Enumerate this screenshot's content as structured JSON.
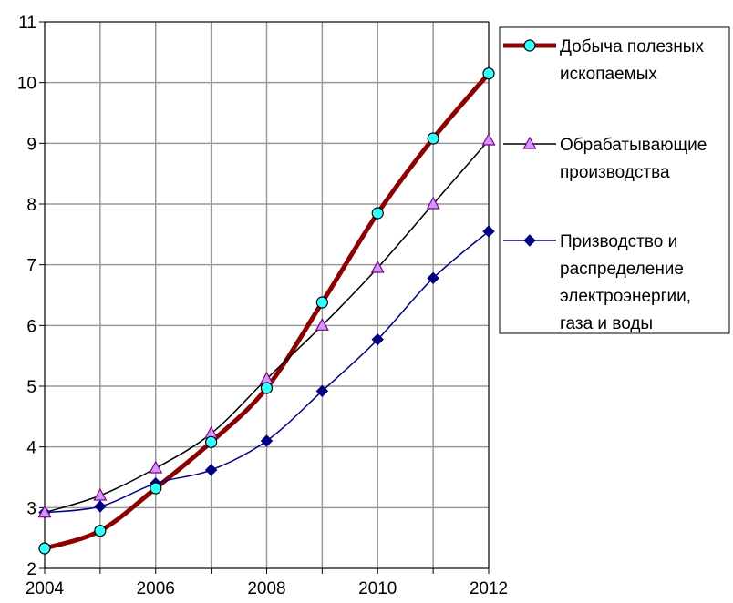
{
  "chart_data": {
    "type": "line",
    "title": "",
    "xlabel": "",
    "ylabel": "",
    "x": [
      2004,
      2005,
      2006,
      2007,
      2008,
      2009,
      2010,
      2011,
      2012
    ],
    "x_tick_labels": [
      "2004",
      "2006",
      "2008",
      "2010",
      "2012"
    ],
    "y_tick_labels": [
      "2",
      "3",
      "4",
      "5",
      "6",
      "7",
      "8",
      "9",
      "10",
      "11"
    ],
    "xlim": [
      2004,
      2012
    ],
    "ylim": [
      2,
      11
    ],
    "grid": true,
    "legend_position": "right",
    "series": [
      {
        "name": "Добыча полезных ископаемых",
        "legend_lines": [
          "Добыча полезных",
          "ископаемых"
        ],
        "values": [
          2.33,
          2.62,
          3.32,
          4.08,
          4.97,
          6.38,
          7.85,
          9.08,
          10.15
        ],
        "color": "#8b0000",
        "marker": "circle",
        "marker_color": "#33ffff"
      },
      {
        "name": "Обрабатывающие производства",
        "legend_lines": [
          "Обрабатывающие",
          "производства"
        ],
        "values": [
          2.92,
          3.2,
          3.65,
          4.22,
          5.12,
          6.0,
          6.95,
          8.0,
          9.05
        ],
        "color": "#000000",
        "marker": "triangle",
        "marker_color": "#cc99ff"
      },
      {
        "name": "Призводство и распределение электроэнергии, газа и воды",
        "legend_lines": [
          "Призводство и",
          "распределение",
          "электроэнергии,",
          "газа и воды"
        ],
        "values": [
          2.92,
          3.02,
          3.4,
          3.62,
          4.1,
          4.92,
          5.77,
          6.78,
          7.55
        ],
        "color": "#000080",
        "marker": "diamond",
        "marker_color": "#000080"
      }
    ]
  }
}
